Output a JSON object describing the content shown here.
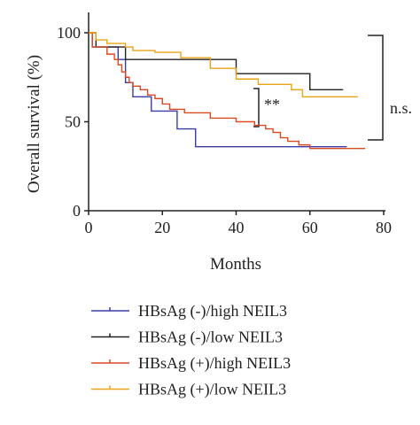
{
  "chart_data": {
    "type": "step",
    "x_label": "Months",
    "y_label": "Overall survival (%)",
    "xlim": [
      0,
      80
    ],
    "ylim": [
      0,
      100
    ],
    "xticks": [
      0,
      20,
      40,
      60,
      80
    ],
    "yticks": [
      0,
      50,
      100
    ],
    "annotations": [
      "**",
      "n.s."
    ],
    "series": [
      {
        "name": "HBsAg (-)/high NEIL3",
        "color": "#3b3ba8",
        "x": [
          0,
          1,
          8,
          10,
          12,
          17,
          24,
          29,
          70
        ],
        "values": [
          100,
          92,
          85,
          72,
          64,
          56,
          46,
          36,
          36
        ]
      },
      {
        "name": "HBsAg (-)/low NEIL3",
        "color": "#222222",
        "x": [
          0,
          2,
          10,
          40,
          60,
          69
        ],
        "values": [
          100,
          92,
          85,
          77,
          68,
          68
        ]
      },
      {
        "name": "HBsAg (+)/high NEIL3",
        "color": "#d9481f",
        "x": [
          0,
          1,
          5,
          7,
          8,
          9,
          10,
          11,
          12,
          14,
          16,
          18,
          20,
          22,
          26,
          33,
          40,
          45,
          48,
          50,
          52,
          54,
          57,
          60,
          75
        ],
        "values": [
          100,
          92,
          88,
          85,
          82,
          78,
          75,
          72,
          70,
          68,
          65,
          63,
          60,
          57,
          55,
          52,
          50,
          48,
          46,
          44,
          41,
          39,
          37,
          35,
          35
        ]
      },
      {
        "name": "HBsAg (+)/low NEIL3",
        "color": "#e8a317",
        "x": [
          0,
          2,
          5,
          10,
          12,
          18,
          25,
          33,
          40,
          46,
          55,
          58,
          73
        ],
        "values": [
          100,
          96,
          94,
          92,
          90,
          89,
          86,
          80,
          74,
          71,
          68,
          64,
          64
        ]
      }
    ]
  }
}
